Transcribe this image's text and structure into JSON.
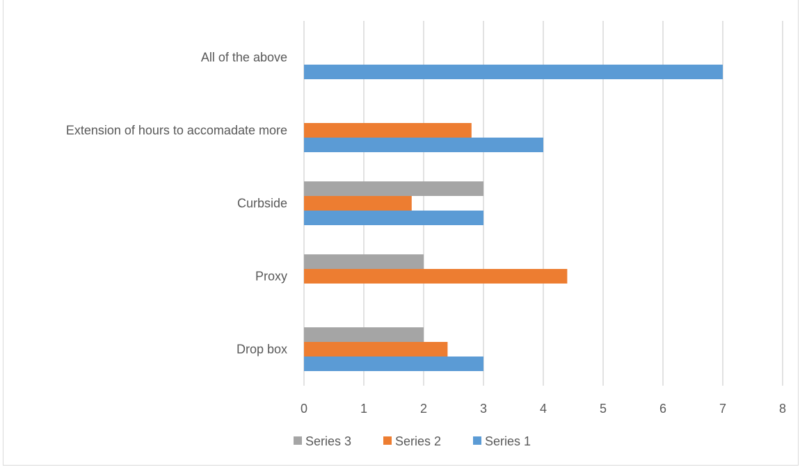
{
  "chart_data": {
    "type": "bar",
    "orientation": "horizontal",
    "title": "",
    "categories": [
      "All of the above",
      "Extension of hours to accomadate more",
      "Curbside",
      "Proxy",
      "Drop box"
    ],
    "series": [
      {
        "name": "Series 3",
        "color": "#a5a5a5",
        "values": [
          0,
          0,
          3,
          2,
          2
        ]
      },
      {
        "name": "Series 2",
        "color": "#ed7d31",
        "values": [
          0,
          2.8,
          1.8,
          4.4,
          2.4
        ]
      },
      {
        "name": "Series 1",
        "color": "#5b9bd5",
        "values": [
          7,
          4,
          3,
          0,
          3
        ]
      }
    ],
    "xlim": [
      0,
      8
    ],
    "xticks": [
      "0",
      "1",
      "2",
      "3",
      "4",
      "5",
      "6",
      "7",
      "8"
    ],
    "grid": "vertical",
    "legend": "bottom"
  }
}
